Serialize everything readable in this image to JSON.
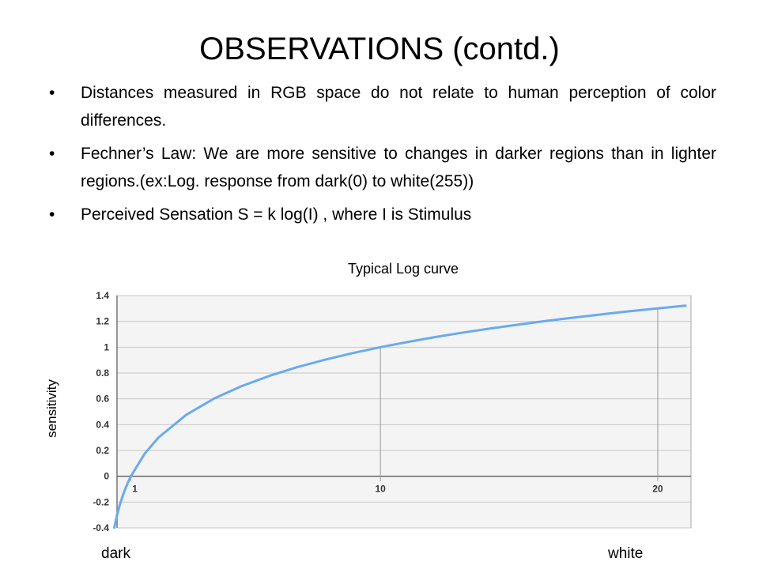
{
  "slide": {
    "title": "OBSERVATIONS (contd.)",
    "bullets": [
      "Distances measured in RGB space do not relate to human perception of color differences.",
      "Fechner’s Law: We are more sensitive to changes in darker regions than in lighter regions.(ex:Log. response from dark(0) to white(255))",
      "Perceived Sensation S = k log(I) , where I is Stimulus"
    ],
    "bullet_glyph": "•"
  },
  "chart_data": {
    "type": "line",
    "title": "Typical Log curve",
    "ylabel": "sensitivity",
    "xlabel_left": "dark",
    "xlabel_right": "white",
    "y_ticks": [
      "1.4",
      "1.2",
      "1",
      "0.8",
      "0.6",
      "0.4",
      "0.2",
      "0",
      "-0.2",
      "-0.4"
    ],
    "x_ticks": [
      "1",
      "10",
      "20"
    ],
    "ylim": [
      -0.4,
      1.4
    ],
    "xlim": [
      0.5,
      21.2
    ],
    "grid": "horizontal",
    "reference_lines_x": [
      1,
      10,
      20
    ],
    "series": [
      {
        "color": "#6aaaf0",
        "x": [
          0.4,
          0.5,
          0.6,
          0.7,
          0.8,
          0.9,
          1,
          1.5,
          2,
          3,
          4,
          5,
          6,
          7,
          8,
          9,
          10,
          11,
          12,
          13,
          14,
          15,
          16,
          17,
          18,
          19,
          20,
          21
        ],
        "y": [
          -0.398,
          -0.301,
          -0.222,
          -0.155,
          -0.097,
          -0.046,
          0,
          0.176,
          0.301,
          0.477,
          0.602,
          0.699,
          0.778,
          0.845,
          0.903,
          0.954,
          1,
          1.041,
          1.079,
          1.114,
          1.146,
          1.176,
          1.204,
          1.23,
          1.255,
          1.279,
          1.301,
          1.322
        ]
      }
    ],
    "colors": {
      "plot_bg": "#f4f4f4",
      "grid": "#c8c8c8",
      "frame": "#a8a8a8"
    }
  }
}
